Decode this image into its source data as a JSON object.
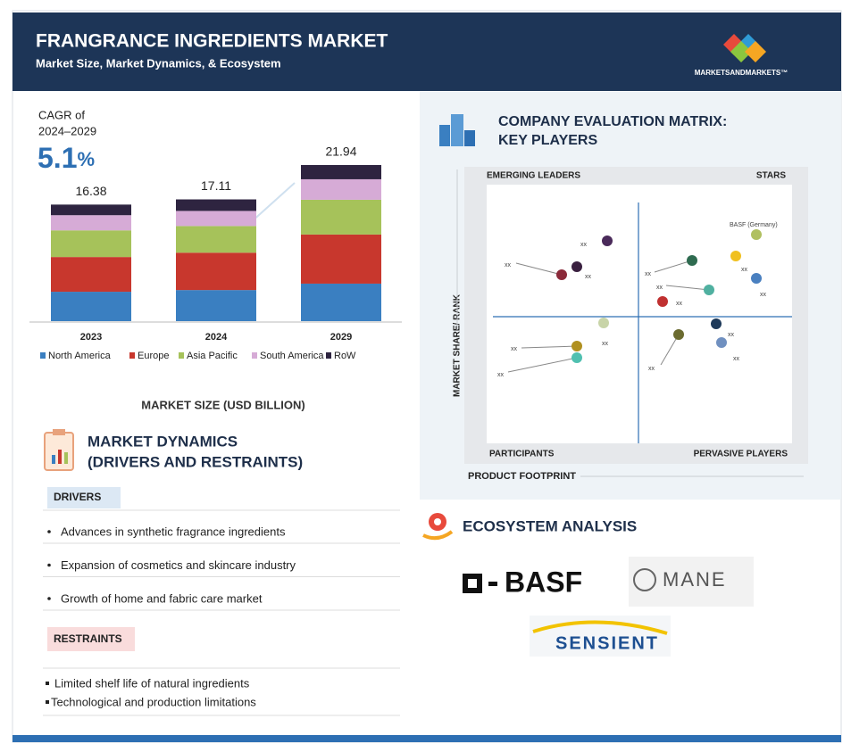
{
  "header": {
    "title": "FRANGRANCE INGREDIENTS MARKET",
    "subtitle": "Market Size, Market Dynamics, & Ecosystem",
    "logo": "MARKETSANDMARKETS™"
  },
  "cagr": {
    "label_line1": "CAGR of",
    "label_line2": "2024–2029",
    "value": "5.1",
    "unit": "%"
  },
  "chart_data": {
    "type": "bar",
    "stacked": true,
    "categories": [
      "2023",
      "2024",
      "2029"
    ],
    "series": [
      {
        "name": "North America",
        "color": "#3a7fc1",
        "values": [
          4.13,
          4.37,
          5.27
        ]
      },
      {
        "name": "Europe",
        "color": "#c8372d",
        "values": [
          4.88,
          5.25,
          6.9
        ]
      },
      {
        "name": "Asia Pacific",
        "color": "#a6c25a",
        "values": [
          3.75,
          3.75,
          4.89
        ]
      },
      {
        "name": "South America",
        "color": "#d6abd6",
        "values": [
          2.13,
          2.12,
          2.88
        ]
      },
      {
        "name": "RoW",
        "color": "#2e2440",
        "values": [
          1.49,
          1.62,
          2.0
        ]
      }
    ],
    "totals": [
      16.38,
      17.11,
      21.94
    ],
    "xlabel": "MARKET SIZE (USD BILLION)"
  },
  "matrix": {
    "title_line1": "COMPANY EVALUATION MATRIX:",
    "title_line2": "KEY PLAYERS",
    "quadrants": [
      "EMERGING LEADERS",
      "STARS",
      "PARTICIPANTS",
      "PERVASIVE PLAYERS"
    ],
    "y_axis": "MARKET SHARE/ RANK",
    "x_axis": "PRODUCT FOOTPRINT",
    "points": [
      {
        "label": "xx"
      },
      {
        "label": "xx"
      },
      {
        "label": "xx"
      },
      {
        "label": "xx"
      },
      {
        "label": "xx"
      },
      {
        "label": "BASF (Germany)"
      },
      {
        "label": "xx"
      },
      {
        "label": "xx"
      },
      {
        "label": "xx"
      },
      {
        "label": "xx"
      },
      {
        "label": "xx"
      },
      {
        "label": "xx"
      },
      {
        "label": "xx"
      },
      {
        "label": "xx"
      },
      {
        "label": "xx"
      }
    ]
  },
  "dynamics": {
    "title_line1": "MARKET DYNAMICS",
    "title_line2": "(DRIVERS AND RESTRAINTS)",
    "drivers_label": "DRIVERS",
    "drivers": [
      "Advances in synthetic fragrance ingredients",
      "Expansion of cosmetics and skincare industry",
      "Growth of home and fabric care market"
    ],
    "restraints_label": "RESTRAINTS",
    "restraints": [
      "Limited shelf life of natural ingredients",
      "Technological and production limitations"
    ]
  },
  "ecosystem": {
    "title": "ECOSYSTEM ANALYSIS",
    "logos": [
      "BASF",
      "MANE",
      "SENSIENT"
    ]
  }
}
